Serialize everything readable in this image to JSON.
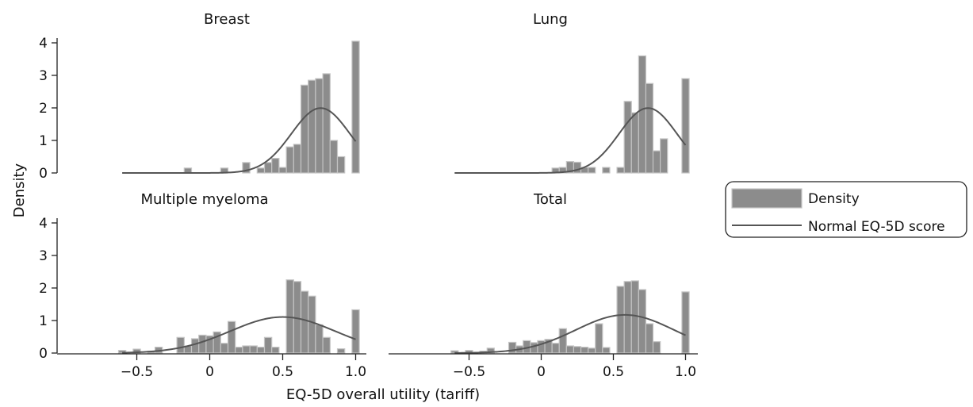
{
  "chart_data": {
    "type": "bar",
    "xlabel": "EQ-5D overall utility (tariff)",
    "ylabel": "Density",
    "xlim": [
      -0.6,
      1.06
    ],
    "ylim": [
      0,
      4.3
    ],
    "xticks": [
      "−0.5",
      "0",
      "0.5",
      "1.0"
    ],
    "yticks": [
      "0",
      "1",
      "2",
      "3",
      "4"
    ],
    "bin_width": 0.05,
    "legend": {
      "position": "right",
      "entries": [
        "Density",
        "Normal EQ-5D score"
      ]
    },
    "panels": [
      {
        "title": "Breast",
        "bins": [
          {
            "x": -0.15,
            "density": 0.15
          },
          {
            "x": 0.1,
            "density": 0.15
          },
          {
            "x": 0.25,
            "density": 0.32
          },
          {
            "x": 0.35,
            "density": 0.15
          },
          {
            "x": 0.4,
            "density": 0.32
          },
          {
            "x": 0.45,
            "density": 0.45
          },
          {
            "x": 0.5,
            "density": 0.17
          },
          {
            "x": 0.55,
            "density": 0.8
          },
          {
            "x": 0.6,
            "density": 0.88
          },
          {
            "x": 0.65,
            "density": 2.7
          },
          {
            "x": 0.7,
            "density": 2.85
          },
          {
            "x": 0.75,
            "density": 2.9
          },
          {
            "x": 0.8,
            "density": 3.05
          },
          {
            "x": 0.85,
            "density": 1.0
          },
          {
            "x": 0.9,
            "density": 0.5
          },
          {
            "x": 1.0,
            "density": 4.05
          }
        ],
        "normal": {
          "mean": 0.76,
          "sd": 0.2
        }
      },
      {
        "title": "Lung",
        "bins": [
          {
            "x": 0.1,
            "density": 0.15
          },
          {
            "x": 0.15,
            "density": 0.17
          },
          {
            "x": 0.2,
            "density": 0.35
          },
          {
            "x": 0.25,
            "density": 0.33
          },
          {
            "x": 0.3,
            "density": 0.17
          },
          {
            "x": 0.35,
            "density": 0.17
          },
          {
            "x": 0.45,
            "density": 0.17
          },
          {
            "x": 0.55,
            "density": 0.17
          },
          {
            "x": 0.6,
            "density": 2.2
          },
          {
            "x": 0.65,
            "density": 1.85
          },
          {
            "x": 0.7,
            "density": 3.6
          },
          {
            "x": 0.75,
            "density": 2.75
          },
          {
            "x": 0.8,
            "density": 0.68
          },
          {
            "x": 0.85,
            "density": 1.05
          },
          {
            "x": 1.0,
            "density": 2.9
          }
        ],
        "normal": {
          "mean": 0.74,
          "sd": 0.2
        }
      },
      {
        "title": "Multiple myeloma",
        "bins": [
          {
            "x": -0.6,
            "density": 0.08
          },
          {
            "x": -0.5,
            "density": 0.12
          },
          {
            "x": -0.4,
            "density": 0.06
          },
          {
            "x": -0.35,
            "density": 0.18
          },
          {
            "x": -0.2,
            "density": 0.48
          },
          {
            "x": -0.15,
            "density": 0.22
          },
          {
            "x": -0.1,
            "density": 0.44
          },
          {
            "x": -0.05,
            "density": 0.55
          },
          {
            "x": 0.0,
            "density": 0.53
          },
          {
            "x": 0.05,
            "density": 0.65
          },
          {
            "x": 0.1,
            "density": 0.3
          },
          {
            "x": 0.15,
            "density": 0.97
          },
          {
            "x": 0.2,
            "density": 0.18
          },
          {
            "x": 0.25,
            "density": 0.22
          },
          {
            "x": 0.3,
            "density": 0.22
          },
          {
            "x": 0.35,
            "density": 0.18
          },
          {
            "x": 0.4,
            "density": 0.48
          },
          {
            "x": 0.45,
            "density": 0.18
          },
          {
            "x": 0.55,
            "density": 2.25
          },
          {
            "x": 0.6,
            "density": 2.2
          },
          {
            "x": 0.65,
            "density": 1.9
          },
          {
            "x": 0.7,
            "density": 1.75
          },
          {
            "x": 0.75,
            "density": 0.87
          },
          {
            "x": 0.8,
            "density": 0.48
          },
          {
            "x": 0.9,
            "density": 0.13
          },
          {
            "x": 1.0,
            "density": 1.33
          }
        ],
        "normal": {
          "mean": 0.5,
          "sd": 0.36
        }
      },
      {
        "title": "Total",
        "bins": [
          {
            "x": -0.6,
            "density": 0.07
          },
          {
            "x": -0.5,
            "density": 0.08
          },
          {
            "x": -0.4,
            "density": 0.06
          },
          {
            "x": -0.35,
            "density": 0.15
          },
          {
            "x": -0.2,
            "density": 0.33
          },
          {
            "x": -0.15,
            "density": 0.22
          },
          {
            "x": -0.1,
            "density": 0.38
          },
          {
            "x": -0.05,
            "density": 0.32
          },
          {
            "x": 0.0,
            "density": 0.38
          },
          {
            "x": 0.05,
            "density": 0.42
          },
          {
            "x": 0.1,
            "density": 0.3
          },
          {
            "x": 0.15,
            "density": 0.75
          },
          {
            "x": 0.2,
            "density": 0.22
          },
          {
            "x": 0.25,
            "density": 0.2
          },
          {
            "x": 0.3,
            "density": 0.18
          },
          {
            "x": 0.35,
            "density": 0.15
          },
          {
            "x": 0.4,
            "density": 0.9
          },
          {
            "x": 0.45,
            "density": 0.17
          },
          {
            "x": 0.55,
            "density": 2.05
          },
          {
            "x": 0.6,
            "density": 2.2
          },
          {
            "x": 0.65,
            "density": 2.22
          },
          {
            "x": 0.7,
            "density": 1.95
          },
          {
            "x": 0.75,
            "density": 0.9
          },
          {
            "x": 0.8,
            "density": 0.35
          },
          {
            "x": 1.0,
            "density": 1.88
          }
        ],
        "normal": {
          "mean": 0.58,
          "sd": 0.34
        }
      }
    ]
  }
}
